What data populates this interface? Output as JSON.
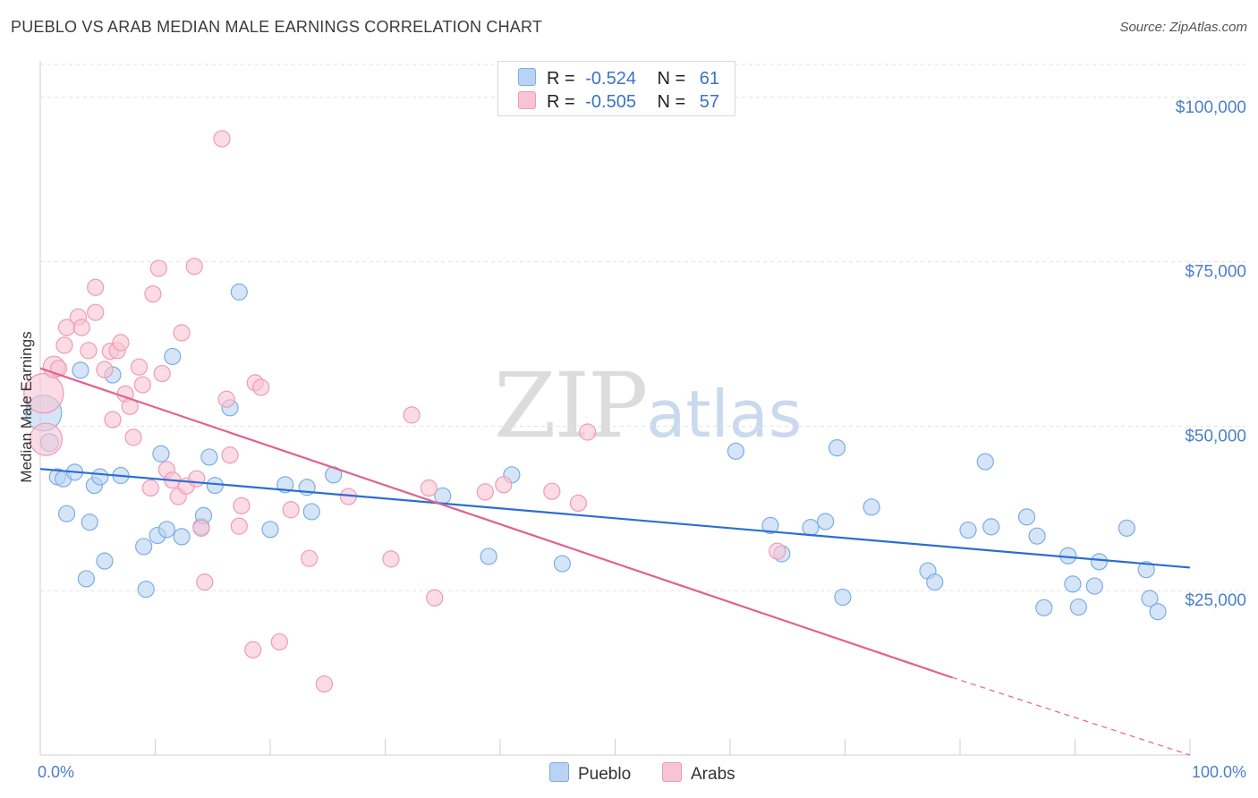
{
  "title": "PUEBLO VS ARAB MEDIAN MALE EARNINGS CORRELATION CHART",
  "source": "Source: ZipAtlas.com",
  "watermark": {
    "zip": "ZIP",
    "atlas": "atlas"
  },
  "legend": {
    "rows": [
      {
        "r_label": "R =",
        "r_value": "-0.524",
        "n_label": "N =",
        "n_value": "61",
        "color": "#b9d3f2"
      },
      {
        "r_label": "R =",
        "r_value": "-0.505",
        "n_label": "N =",
        "n_value": "57",
        "color": "#f8c4d4"
      }
    ]
  },
  "bottom_legend": [
    {
      "label": "Pueblo",
      "color": "#b9d3f2"
    },
    {
      "label": "Arabs",
      "color": "#f8c4d4"
    }
  ],
  "chart_data": {
    "type": "scatter",
    "xlabel": "",
    "ylabel": "Median Male Earnings",
    "xlim": [
      0,
      100
    ],
    "ylim": [
      0,
      105000
    ],
    "x_tick_labels": [
      "0.0%",
      "100.0%"
    ],
    "y_ticks": [
      25000,
      50000,
      75000,
      100000
    ],
    "y_tick_labels": [
      "$25,000",
      "$50,000",
      "$75,000",
      "$100,000"
    ],
    "grid": "horizontal dashed",
    "legend_placement": "top-center",
    "series": [
      {
        "name": "Pueblo",
        "color": "#7aaee6",
        "fill": "#b9d3f2",
        "line_color": "#2b6fd0",
        "trend": {
          "x": [
            0,
            100
          ],
          "y": [
            43500,
            28500
          ],
          "dashed_after": null
        },
        "points": [
          [
            0.3,
            52000,
            20
          ],
          [
            0.8,
            47500,
            10
          ],
          [
            1.5,
            42300,
            9
          ],
          [
            2,
            42000,
            9
          ],
          [
            2.3,
            36700,
            9
          ],
          [
            3,
            43000,
            9
          ],
          [
            3.5,
            58500,
            9
          ],
          [
            4,
            26800,
            9
          ],
          [
            4.3,
            35400,
            9
          ],
          [
            4.7,
            41000,
            9
          ],
          [
            5.2,
            42300,
            9
          ],
          [
            5.6,
            29500,
            9
          ],
          [
            6.3,
            57800,
            9
          ],
          [
            7,
            42500,
            9
          ],
          [
            9,
            31700,
            9
          ],
          [
            9.2,
            25200,
            9
          ],
          [
            10.2,
            33400,
            9
          ],
          [
            10.5,
            45800,
            9
          ],
          [
            11,
            34300,
            9
          ],
          [
            11.5,
            60600,
            9
          ],
          [
            12.3,
            33200,
            9
          ],
          [
            14,
            34700,
            9
          ],
          [
            14.2,
            36400,
            9
          ],
          [
            14.7,
            45300,
            9
          ],
          [
            15.2,
            41000,
            9
          ],
          [
            16.5,
            52800,
            9
          ],
          [
            17.3,
            70400,
            9
          ],
          [
            20,
            34300,
            9
          ],
          [
            21.3,
            41100,
            9
          ],
          [
            23.2,
            40700,
            9
          ],
          [
            23.6,
            37000,
            9
          ],
          [
            25.5,
            42600,
            9
          ],
          [
            35,
            39400,
            9
          ],
          [
            39,
            30200,
            9
          ],
          [
            41,
            42600,
            9
          ],
          [
            45.4,
            29100,
            9
          ],
          [
            60.5,
            46200,
            9
          ],
          [
            63.5,
            34900,
            9
          ],
          [
            64.5,
            30600,
            9
          ],
          [
            67,
            34600,
            9
          ],
          [
            68.3,
            35500,
            9
          ],
          [
            69.3,
            46700,
            9
          ],
          [
            69.8,
            24000,
            9
          ],
          [
            72.3,
            37700,
            9
          ],
          [
            77.2,
            28000,
            9
          ],
          [
            77.8,
            26300,
            9
          ],
          [
            80.7,
            34200,
            9
          ],
          [
            82.2,
            44600,
            9
          ],
          [
            82.7,
            34700,
            9
          ],
          [
            85.8,
            36200,
            9
          ],
          [
            86.7,
            33300,
            9
          ],
          [
            87.3,
            22400,
            9
          ],
          [
            89.4,
            30300,
            9
          ],
          [
            89.8,
            26000,
            9
          ],
          [
            90.3,
            22500,
            9
          ],
          [
            91.7,
            25700,
            9
          ],
          [
            92.1,
            29400,
            9
          ],
          [
            94.5,
            34500,
            9
          ],
          [
            96.2,
            28200,
            9
          ],
          [
            96.5,
            23800,
            9
          ],
          [
            97.2,
            21800,
            9
          ]
        ]
      },
      {
        "name": "Arabs",
        "color": "#f09ab5",
        "fill": "#f8c4d4",
        "line_color": "#e0628e",
        "trend": {
          "x": [
            0,
            79.3
          ],
          "y": [
            58800,
            11800
          ],
          "dashed_to": [
            100,
            0
          ]
        },
        "points": [
          [
            0.3,
            55000,
            22
          ],
          [
            0.5,
            48000,
            18
          ],
          [
            1.2,
            59000,
            12
          ],
          [
            2.1,
            62300,
            9
          ],
          [
            2.3,
            65000,
            9
          ],
          [
            3.3,
            66600,
            9
          ],
          [
            3.6,
            65000,
            9
          ],
          [
            4.2,
            61500,
            9
          ],
          [
            4.8,
            67300,
            9
          ],
          [
            4.8,
            71100,
            9
          ],
          [
            5.6,
            58600,
            9
          ],
          [
            6.1,
            61400,
            9
          ],
          [
            6.3,
            51000,
            9
          ],
          [
            6.7,
            61500,
            9
          ],
          [
            7,
            62700,
            9
          ],
          [
            7.4,
            54900,
            9
          ],
          [
            7.8,
            53000,
            9
          ],
          [
            8.1,
            48300,
            9
          ],
          [
            8.6,
            59000,
            9
          ],
          [
            8.9,
            56300,
            9
          ],
          [
            9.6,
            40600,
            9
          ],
          [
            9.8,
            70100,
            9
          ],
          [
            10.3,
            74000,
            9
          ],
          [
            10.6,
            58000,
            9
          ],
          [
            11,
            43400,
            9
          ],
          [
            11.5,
            41800,
            9
          ],
          [
            12,
            39300,
            9
          ],
          [
            12.3,
            64200,
            9
          ],
          [
            12.7,
            40900,
            9
          ],
          [
            13.4,
            74300,
            9
          ],
          [
            13.6,
            42000,
            9
          ],
          [
            14,
            34500,
            9
          ],
          [
            14.3,
            26300,
            9
          ],
          [
            15.8,
            93700,
            9
          ],
          [
            16.2,
            54100,
            9
          ],
          [
            16.5,
            45600,
            9
          ],
          [
            17.3,
            34800,
            9
          ],
          [
            17.5,
            37900,
            9
          ],
          [
            18.5,
            16000,
            9
          ],
          [
            18.7,
            56600,
            9
          ],
          [
            19.2,
            55900,
            9
          ],
          [
            20.8,
            17200,
            9
          ],
          [
            21.8,
            37300,
            9
          ],
          [
            23.4,
            29900,
            9
          ],
          [
            24.7,
            10800,
            9
          ],
          [
            26.8,
            39300,
            9
          ],
          [
            30.5,
            29800,
            9
          ],
          [
            32.3,
            51700,
            9
          ],
          [
            33.8,
            40600,
            9
          ],
          [
            34.3,
            23900,
            9
          ],
          [
            38.7,
            40000,
            9
          ],
          [
            40.3,
            41100,
            9
          ],
          [
            44.5,
            40100,
            9
          ],
          [
            46.8,
            38300,
            9
          ],
          [
            47.6,
            49100,
            9
          ],
          [
            64.1,
            31000,
            9
          ],
          [
            1.6,
            58800,
            9
          ]
        ]
      }
    ]
  }
}
